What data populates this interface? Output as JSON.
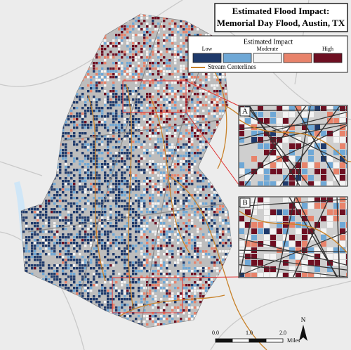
{
  "title": {
    "line1": "Estimated Flood Impact:",
    "line2": "Memorial Day Flood, Austin, TX"
  },
  "legend": {
    "title": "Estimated Impact",
    "levels": [
      {
        "label": "Low",
        "color": "#1f3a6b"
      },
      {
        "label": null,
        "color": "#6fa8d6"
      },
      {
        "label": "Moderate",
        "color": "#f4f4f4"
      },
      {
        "label": null,
        "color": "#e8836b"
      },
      {
        "label": "High",
        "color": "#6e0f22"
      }
    ],
    "stream": {
      "label": "Stream Centerlines",
      "color": "#c8822a"
    }
  },
  "insets": [
    {
      "label": "A"
    },
    {
      "label": "B"
    }
  ],
  "scale_bar": {
    "ticks": [
      "0.0",
      "1.0",
      "2.0"
    ],
    "unit": "Miles"
  },
  "north_arrow": {
    "label": "N"
  }
}
